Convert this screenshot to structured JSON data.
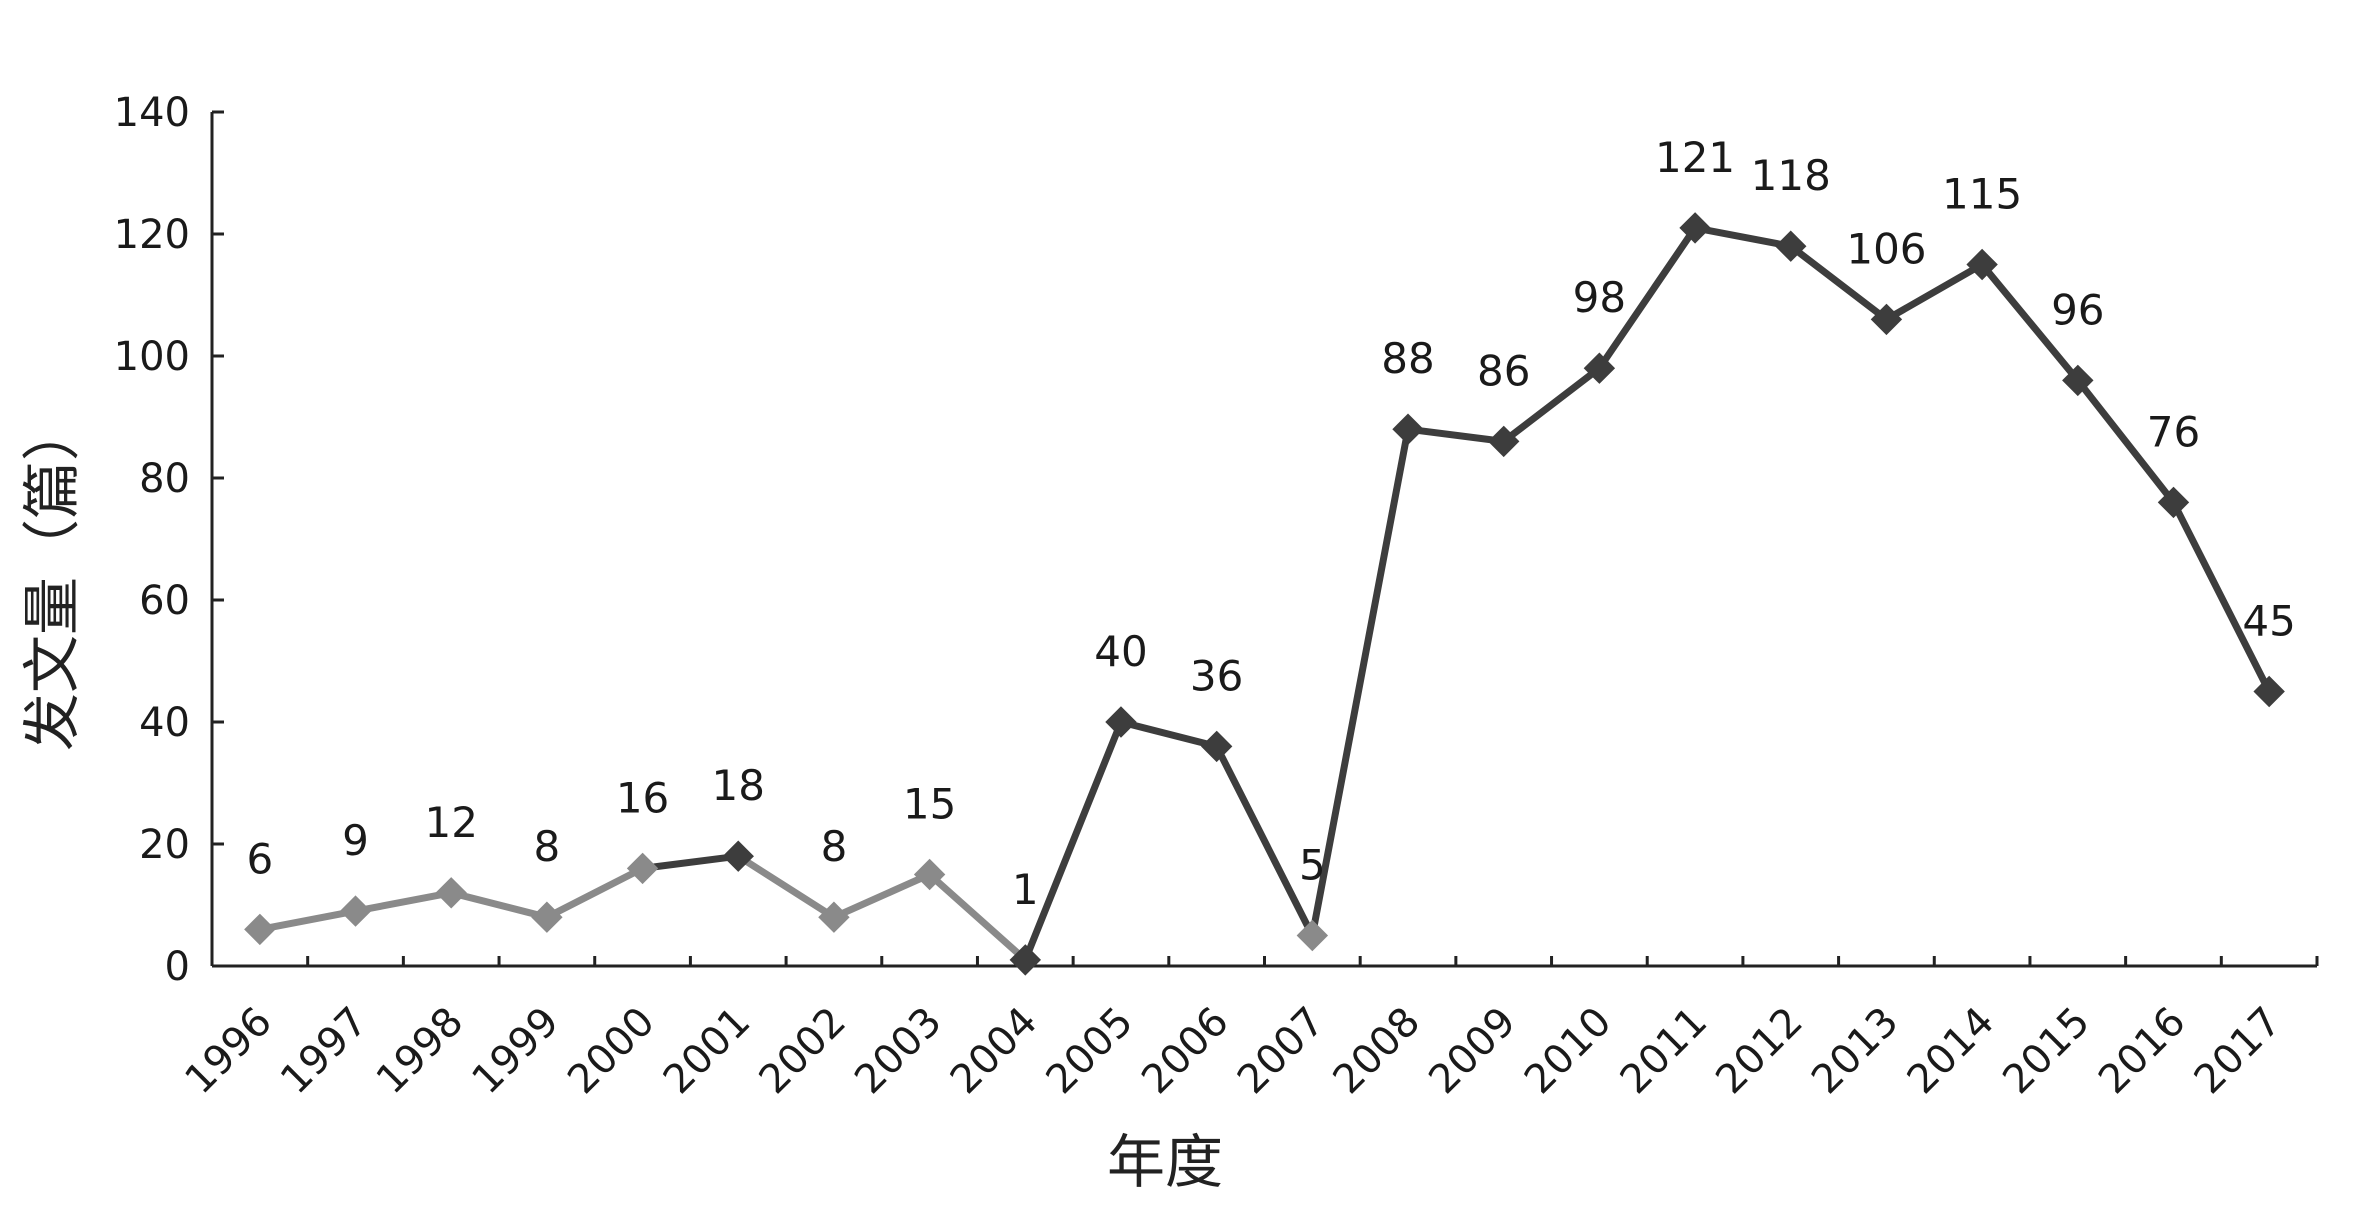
{
  "chart_data": {
    "type": "line",
    "title": "",
    "xlabel": "年度",
    "ylabel": "发文量（篇）",
    "ylim": [
      0,
      140
    ],
    "yticks": [
      "0",
      "20",
      "40",
      "60",
      "80",
      "100",
      "120",
      "140"
    ],
    "grid": false,
    "categories": [
      "1996",
      "1997",
      "1998",
      "1999",
      "2000",
      "2001",
      "2002",
      "2003",
      "2004",
      "2005",
      "2006",
      "2007",
      "2008",
      "2009",
      "2010",
      "2011",
      "2012",
      "2013",
      "2014",
      "2015",
      "2016",
      "2017"
    ],
    "series": [
      {
        "values": [
          6,
          9,
          12,
          8,
          16,
          18,
          8,
          15,
          1,
          40,
          36,
          5,
          88,
          86,
          98,
          121,
          118,
          106,
          115,
          96,
          76,
          45
        ]
      }
    ],
    "data_labels": [
      "6",
      "9",
      "12",
      "8",
      "16",
      "18",
      "8",
      "15",
      "1",
      "40",
      "36",
      "5",
      "88",
      "86",
      "98",
      "121",
      "118",
      "106",
      "115",
      "96",
      "76",
      "45"
    ],
    "colors": {
      "light": "#8a8a8a",
      "dark": "#3d3d3d",
      "axis": "#222222"
    }
  }
}
